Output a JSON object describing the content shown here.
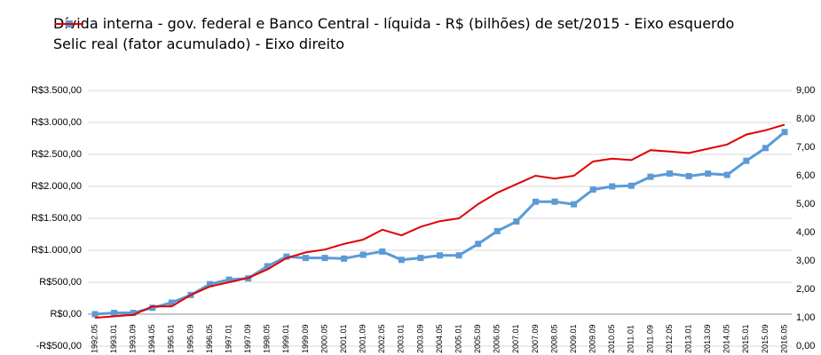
{
  "chart_data": {
    "type": "line",
    "categories": [
      "1992.05",
      "1993.01",
      "1993.09",
      "1994.05",
      "1995.01",
      "1995.09",
      "1996.05",
      "1997.01",
      "1997.09",
      "1998.05",
      "1999.01",
      "1999.09",
      "2000.05",
      "2001.01",
      "2001.09",
      "2002.05",
      "2003.01",
      "2003.09",
      "2004.05",
      "2005.01",
      "2005.09",
      "2006.05",
      "2007.01",
      "2007.09",
      "2008.05",
      "2009.01",
      "2009.09",
      "2010.05",
      "2011.01",
      "2011.09",
      "2012.05",
      "2013.01",
      "2013.09",
      "2014.05",
      "2015.01",
      "2015.09",
      "2016.05"
    ],
    "series": [
      {
        "name": "Dívida interna - gov. federal e Banco Central - líquida - R$ (bilhões) de set/2015 - Eixo esquerdo",
        "color": "#5b9bd5",
        "marker": "square",
        "values": [
          0,
          20,
          20,
          100,
          180,
          300,
          470,
          540,
          560,
          750,
          900,
          880,
          880,
          870,
          930,
          980,
          850,
          880,
          920,
          920,
          1100,
          1300,
          1450,
          1760,
          1760,
          1720,
          1950,
          2000,
          2010,
          2150,
          2200,
          2160,
          2200,
          2180,
          2400,
          2600,
          2850
        ]
      },
      {
        "name": "Selic real (fator acumulado) - Eixo direito",
        "color": "#e00000",
        "axis": "y2",
        "values": [
          1.0,
          1.05,
          1.1,
          1.4,
          1.4,
          1.8,
          2.1,
          2.25,
          2.4,
          2.7,
          3.1,
          3.3,
          3.4,
          3.6,
          3.75,
          4.1,
          3.9,
          4.2,
          4.4,
          4.5,
          5.0,
          5.4,
          5.7,
          6.0,
          5.9,
          6.0,
          6.5,
          6.6,
          6.55,
          6.9,
          6.85,
          6.8,
          6.95,
          7.1,
          7.45,
          7.6,
          7.8
        ]
      }
    ],
    "ylim": [
      -500,
      3500
    ],
    "yticks": [
      {
        "value": -500,
        "label": "-R$500,00"
      },
      {
        "value": 0,
        "label": "R$0,00"
      },
      {
        "value": 500,
        "label": "R$500,00"
      },
      {
        "value": 1000,
        "label": "R$1.000,00"
      },
      {
        "value": 1500,
        "label": "R$1.500,00"
      },
      {
        "value": 2000,
        "label": "R$2.000,00"
      },
      {
        "value": 2500,
        "label": "R$2.500,00"
      },
      {
        "value": 3000,
        "label": "R$3.000,00"
      },
      {
        "value": 3500,
        "label": "R$3.500,00"
      }
    ],
    "y2lim": [
      0,
      9
    ],
    "y2ticks": [
      {
        "value": 0,
        "label": "0,00"
      },
      {
        "value": 1,
        "label": "1,00"
      },
      {
        "value": 2,
        "label": "2,00"
      },
      {
        "value": 3,
        "label": "3,00"
      },
      {
        "value": 4,
        "label": "4,00"
      },
      {
        "value": 5,
        "label": "5,00"
      },
      {
        "value": 6,
        "label": "6,00"
      },
      {
        "value": 7,
        "label": "7,00"
      },
      {
        "value": 8,
        "label": "8,00"
      },
      {
        "value": 9,
        "label": "9,00"
      }
    ],
    "grid": true
  }
}
